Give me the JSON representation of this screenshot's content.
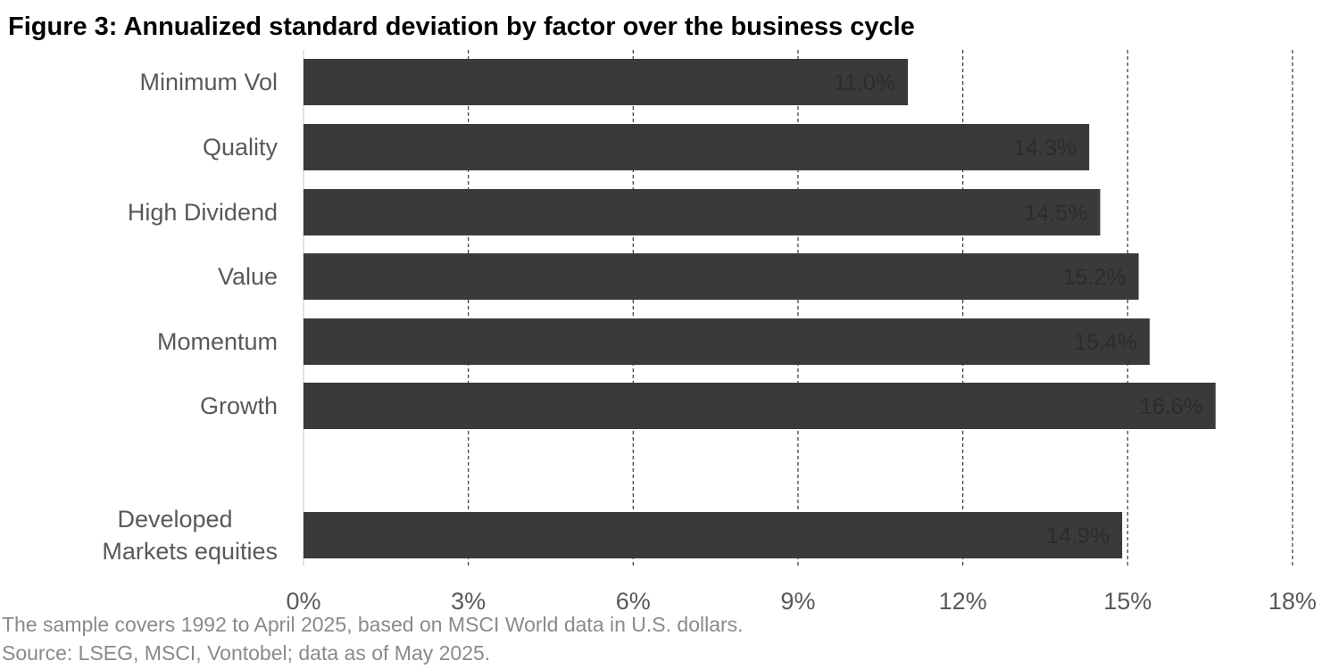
{
  "colors": {
    "bar": "#3a3b39",
    "bar_label": "#2c2d2b",
    "axis_text": "#595959",
    "grid": "#3a3a3a",
    "axis_line": "#d9d9d9",
    "note_text": "#8a8a8a"
  },
  "chart_data": {
    "type": "bar",
    "orientation": "horizontal",
    "title": "Figure 3: Annualized standard deviation by factor over the business cycle",
    "categories": [
      "Minimum Vol",
      "Quality",
      "High Dividend",
      "Value",
      "Momentum",
      "Growth",
      "Developed Markets equities"
    ],
    "category_lines": [
      [
        "Minimum Vol"
      ],
      [
        "Quality"
      ],
      [
        "High Dividend"
      ],
      [
        "Value"
      ],
      [
        "Momentum"
      ],
      [
        "Growth"
      ],
      [
        "Developed",
        "Markets equities"
      ]
    ],
    "values": [
      11.0,
      14.3,
      14.5,
      15.2,
      15.4,
      16.6,
      14.9
    ],
    "value_labels": [
      "11.0%",
      "14.3%",
      "14.5%",
      "15.2%",
      "15.4%",
      "16.6%",
      "14.9%"
    ],
    "xlim": [
      0,
      18
    ],
    "xticks": [
      0,
      3,
      6,
      9,
      12,
      15,
      18
    ],
    "xtick_labels": [
      "0%",
      "3%",
      "6%",
      "9%",
      "12%",
      "15%",
      "18%"
    ],
    "grid": "vertical dashed",
    "legend": "none",
    "xlabel": "",
    "ylabel": ""
  },
  "notes": {
    "sample": "The sample covers 1992 to April 2025, based on MSCI World data in U.S. dollars.",
    "source": "Source: LSEG, MSCI, Vontobel; data as of May 2025."
  }
}
